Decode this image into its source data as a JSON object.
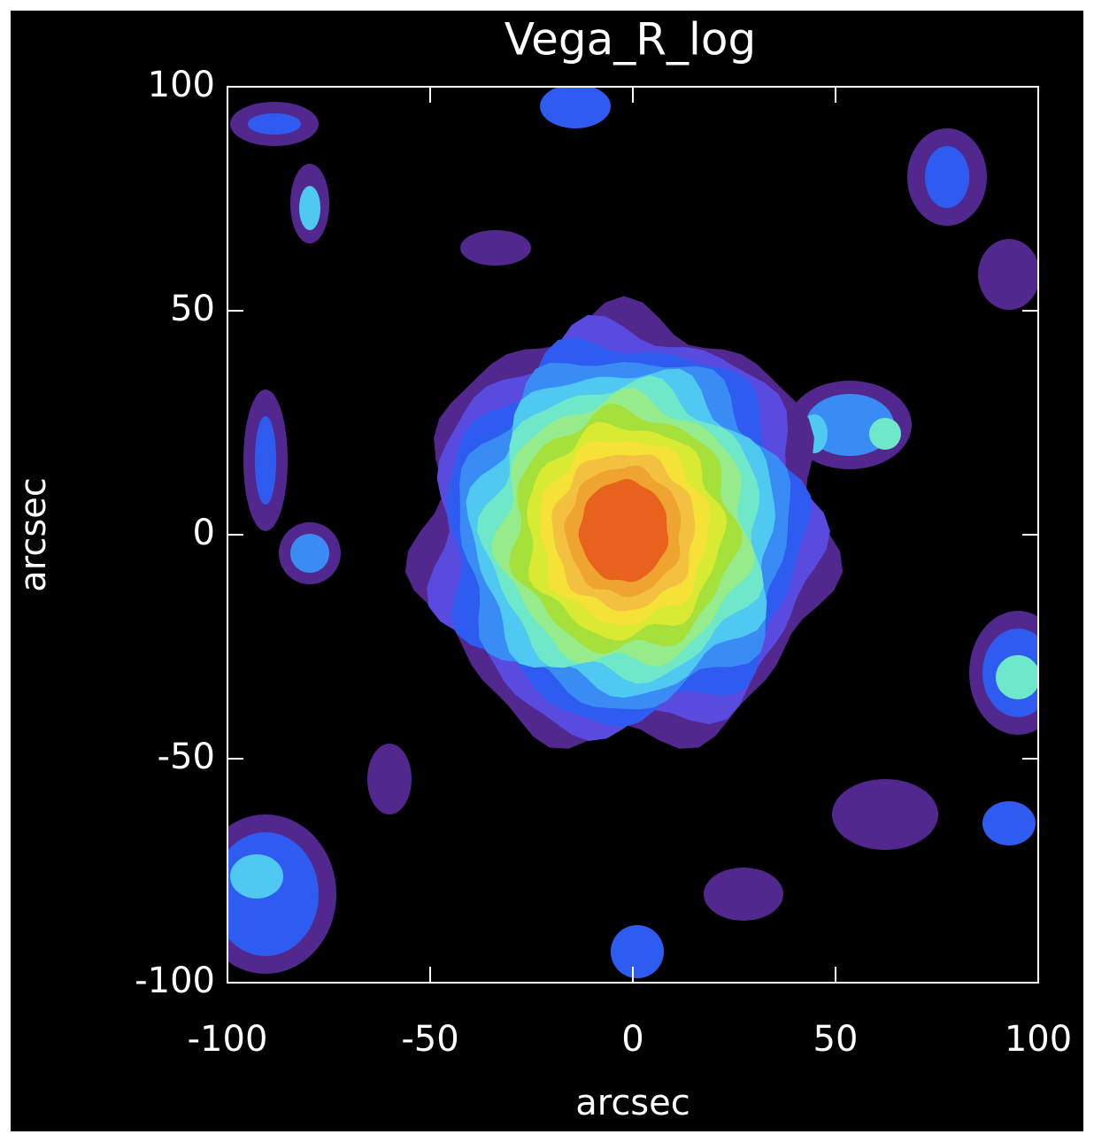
{
  "chart_data": {
    "type": "contour",
    "title": "Vega_R_log",
    "x_label": "arcsec",
    "y_label": "arcsec",
    "xlim": [
      -100,
      100
    ],
    "ylim": [
      -100,
      100
    ],
    "xticks": [
      -100,
      -50,
      0,
      50,
      100
    ],
    "yticks": [
      -100,
      -50,
      0,
      50,
      100
    ],
    "level_colors": [
      "#52288f",
      "#5a4be0",
      "#2f5cf0",
      "#3a8cf5",
      "#4fc8f2",
      "#6ee8c8",
      "#96ec8a",
      "#a6e03a",
      "#d8ea32",
      "#f6e236",
      "#f3c040",
      "#f0a430",
      "#e8621e"
    ],
    "axis_color": "#ffffff"
  }
}
